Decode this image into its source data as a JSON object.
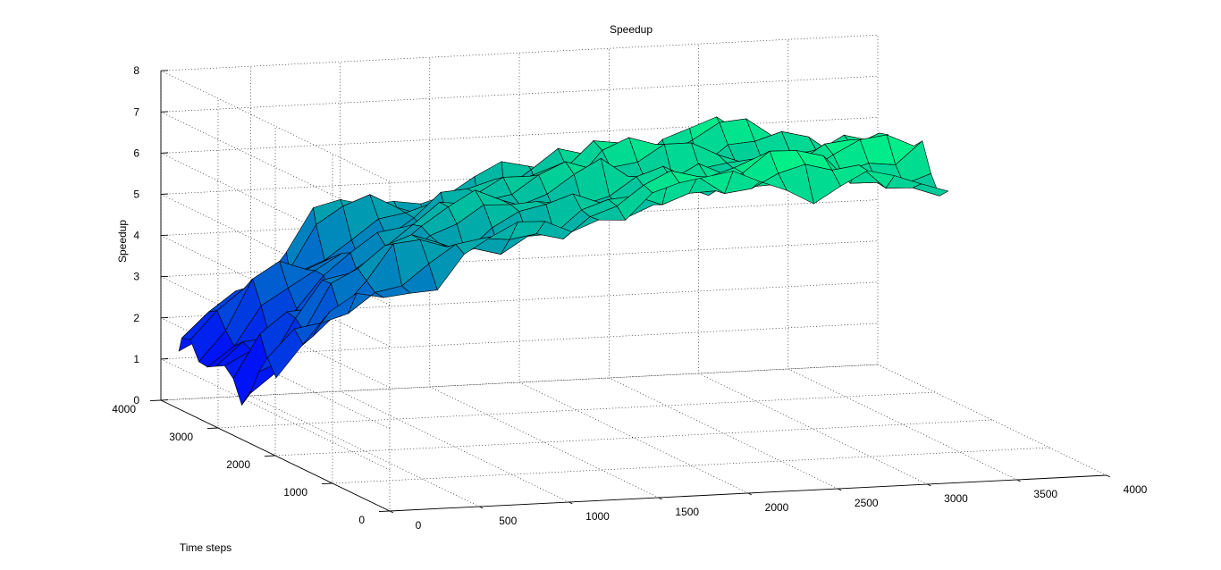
{
  "chart_data": {
    "type": "surface",
    "title": "Speedup",
    "xlabel": "",
    "ylabel": "Time steps",
    "zlabel": "Speedup",
    "x_range": [
      0,
      4000
    ],
    "y_range": [
      0,
      4000
    ],
    "z_range": [
      0,
      8
    ],
    "x_ticks": [
      "0",
      "500",
      "1000",
      "1500",
      "2000",
      "2500",
      "3000",
      "3500",
      "4000"
    ],
    "y_ticks": [
      "0",
      "1000",
      "2000",
      "3000",
      "4000"
    ],
    "z_ticks": [
      "0",
      "1",
      "2",
      "3",
      "4",
      "5",
      "6",
      "7",
      "8"
    ],
    "grid": true,
    "colormap": "winter",
    "color_low": "#0000ff",
    "color_high": "#00ff80",
    "surface": {
      "x_start": 100,
      "x_step": 150,
      "x_count": 26,
      "y": [
        2300,
        2450,
        2600,
        2750,
        2900,
        3050,
        3200,
        3350,
        3500,
        3650,
        3800,
        3950,
        4000
      ],
      "shape": "approx. speedup ≈ 5.1 × (1 − e^(−x/900)) + 0.8 with irregular dips and peaks across time steps"
    }
  }
}
